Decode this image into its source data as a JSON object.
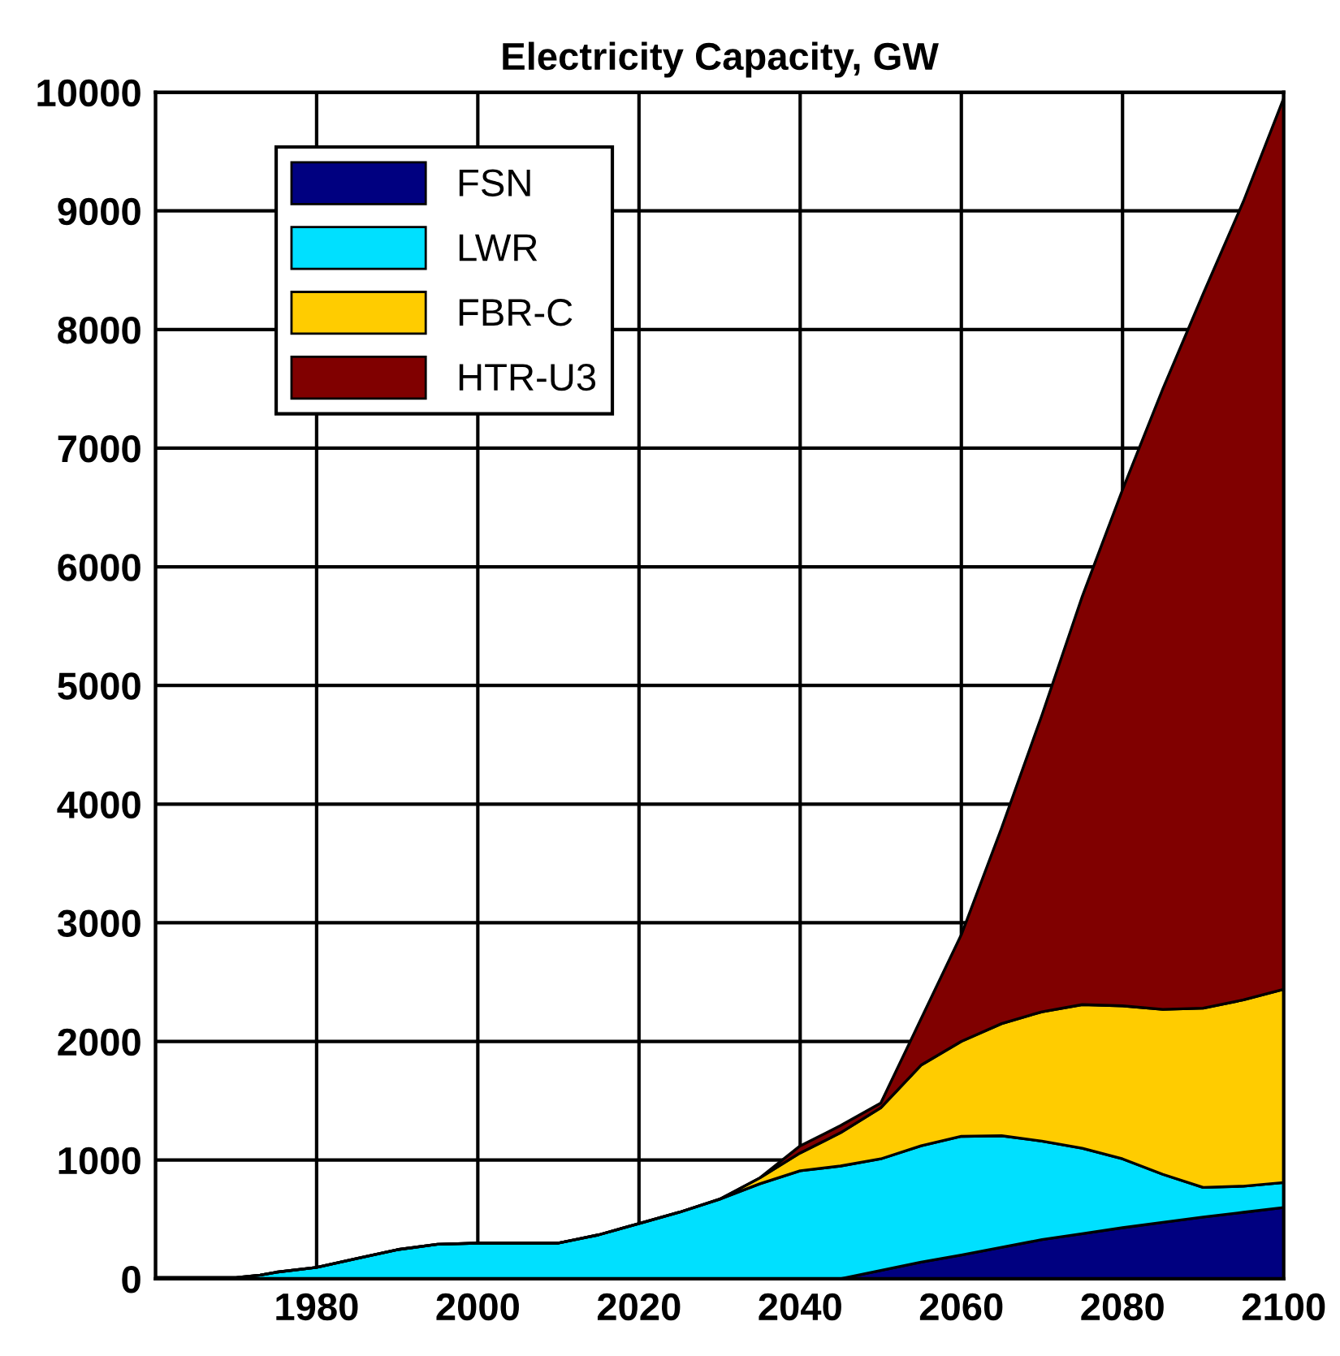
{
  "chart_data": {
    "type": "area",
    "stacked": true,
    "title": "Electricity Capacity, GW",
    "x": [
      1960,
      1965,
      1970,
      1973,
      1975,
      1980,
      1985,
      1990,
      1995,
      2000,
      2005,
      2010,
      2015,
      2020,
      2025,
      2030,
      2035,
      2040,
      2045,
      2050,
      2055,
      2060,
      2065,
      2070,
      2075,
      2080,
      2085,
      2090,
      2095,
      2100
    ],
    "series": [
      {
        "name": "FSN",
        "color": "#000080",
        "values": [
          0,
          0,
          0,
          0,
          0,
          0,
          0,
          0,
          0,
          0,
          0,
          0,
          0,
          0,
          0,
          0,
          0,
          0,
          0,
          70,
          140,
          200,
          265,
          330,
          380,
          430,
          475,
          520,
          560,
          600
        ]
      },
      {
        "name": "LWR",
        "color": "#00e0ff",
        "values": [
          10,
          10,
          10,
          30,
          55,
          95,
          170,
          245,
          290,
          300,
          300,
          300,
          370,
          465,
          560,
          670,
          800,
          910,
          950,
          940,
          980,
          1000,
          940,
          830,
          720,
          580,
          405,
          250,
          220,
          210
        ]
      },
      {
        "name": "FBR-C",
        "color": "#ffcc00",
        "values": [
          0,
          0,
          0,
          0,
          0,
          0,
          0,
          0,
          0,
          0,
          0,
          0,
          0,
          0,
          0,
          0,
          50,
          150,
          280,
          430,
          680,
          800,
          945,
          1090,
          1210,
          1290,
          1390,
          1510,
          1570,
          1630
        ]
      },
      {
        "name": "HTR-U3",
        "color": "#800000",
        "values": [
          0,
          0,
          0,
          0,
          0,
          0,
          0,
          0,
          0,
          0,
          0,
          0,
          0,
          0,
          0,
          0,
          0,
          60,
          60,
          40,
          390,
          900,
          1650,
          2500,
          3440,
          4350,
          5230,
          6020,
          6730,
          7510
        ]
      }
    ],
    "xlim": [
      1960,
      2100
    ],
    "xticks": [
      {
        "value": 1960,
        "label": null
      },
      1980,
      2000,
      2020,
      2040,
      2060,
      2080,
      2100
    ],
    "ylim": [
      0,
      10000
    ],
    "yticks": [
      0,
      1000,
      2000,
      3000,
      4000,
      5000,
      6000,
      7000,
      8000,
      9000,
      10000
    ],
    "grid": true,
    "legend": "top left"
  }
}
